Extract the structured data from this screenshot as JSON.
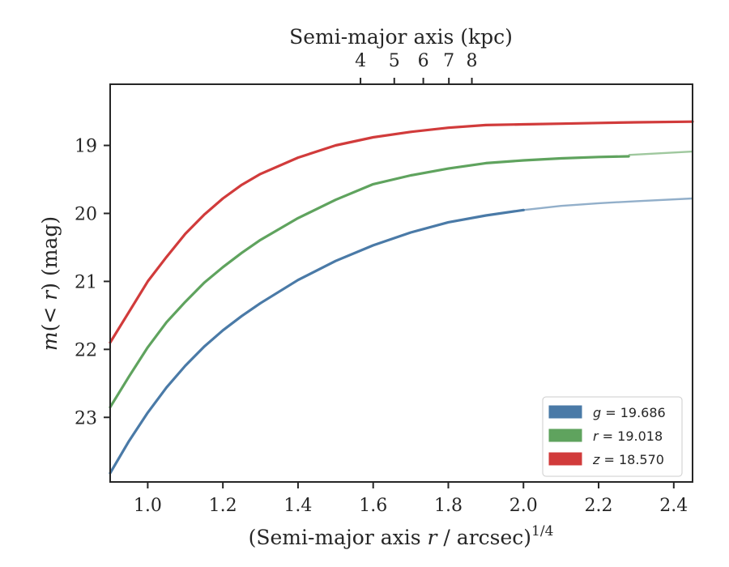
{
  "chart_data": {
    "type": "line",
    "xlabel": "(Semi-major axis r / arcsec)^{1/4}",
    "ylabel": "m(< r) (mag)",
    "top_xlabel": "Semi-major axis (kpc)",
    "xlim": [
      0.9,
      2.45
    ],
    "ylim": [
      23.95,
      18.1
    ],
    "y_inverted": true,
    "xticks": [
      1.0,
      1.2,
      1.4,
      1.6,
      1.8,
      2.0,
      2.2,
      2.4
    ],
    "xtick_labels": [
      "1.0",
      "1.2",
      "1.4",
      "1.6",
      "1.8",
      "2.0",
      "2.2",
      "2.4"
    ],
    "yticks": [
      19,
      20,
      21,
      22,
      23
    ],
    "ytick_labels": [
      "19",
      "20",
      "21",
      "22",
      "23"
    ],
    "top_xticks": [
      4,
      5,
      6,
      7,
      8
    ],
    "top_xtick_labels": [
      "4",
      "5",
      "6",
      "7",
      "8"
    ],
    "top_kpc_per_arcsec": 0.6646,
    "grid": false,
    "legend_position": "lower-right",
    "series": [
      {
        "name": "g = 19.686",
        "band": "g",
        "value_label": "19.686",
        "color": "#4a7aa7",
        "x": [
          0.9,
          0.95,
          1.0,
          1.05,
          1.1,
          1.15,
          1.2,
          1.25,
          1.3,
          1.4,
          1.5,
          1.6,
          1.7,
          1.8,
          1.9,
          2.0
        ],
        "y": [
          23.82,
          23.35,
          22.93,
          22.56,
          22.24,
          21.96,
          21.72,
          21.51,
          21.32,
          20.98,
          20.7,
          20.47,
          20.28,
          20.13,
          20.03,
          19.95
        ],
        "extrapolated_x": [
          2.0,
          2.1,
          2.2,
          2.3,
          2.45
        ],
        "extrapolated_y": [
          19.95,
          19.89,
          19.85,
          19.82,
          19.78
        ]
      },
      {
        "name": "r = 19.018",
        "band": "r",
        "value_label": "19.018",
        "color": "#5fa35e",
        "x": [
          0.9,
          0.95,
          1.0,
          1.05,
          1.1,
          1.15,
          1.2,
          1.25,
          1.3,
          1.4,
          1.5,
          1.6,
          1.7,
          1.8,
          1.9,
          2.0,
          2.1,
          2.2,
          2.28
        ],
        "y": [
          22.85,
          22.4,
          21.97,
          21.6,
          21.3,
          21.02,
          20.79,
          20.58,
          20.39,
          20.07,
          19.8,
          19.57,
          19.44,
          19.34,
          19.26,
          19.22,
          19.19,
          19.17,
          19.16
        ],
        "extrapolated_x": [
          2.28,
          2.35,
          2.45
        ],
        "extrapolated_y": [
          19.14,
          19.12,
          19.09
        ]
      },
      {
        "name": "z = 18.570",
        "band": "z",
        "value_label": "18.570",
        "color": "#d13b3b",
        "x": [
          0.9,
          0.95,
          1.0,
          1.05,
          1.1,
          1.15,
          1.2,
          1.25,
          1.3,
          1.4,
          1.5,
          1.6,
          1.7,
          1.8,
          1.9,
          2.0,
          2.1,
          2.2,
          2.3,
          2.45
        ],
        "y": [
          21.9,
          21.45,
          21.0,
          20.64,
          20.3,
          20.02,
          19.78,
          19.58,
          19.42,
          19.18,
          19.0,
          18.88,
          18.8,
          18.74,
          18.7,
          18.69,
          18.68,
          18.67,
          18.66,
          18.65
        ],
        "extrapolated_x": [],
        "extrapolated_y": []
      }
    ]
  }
}
